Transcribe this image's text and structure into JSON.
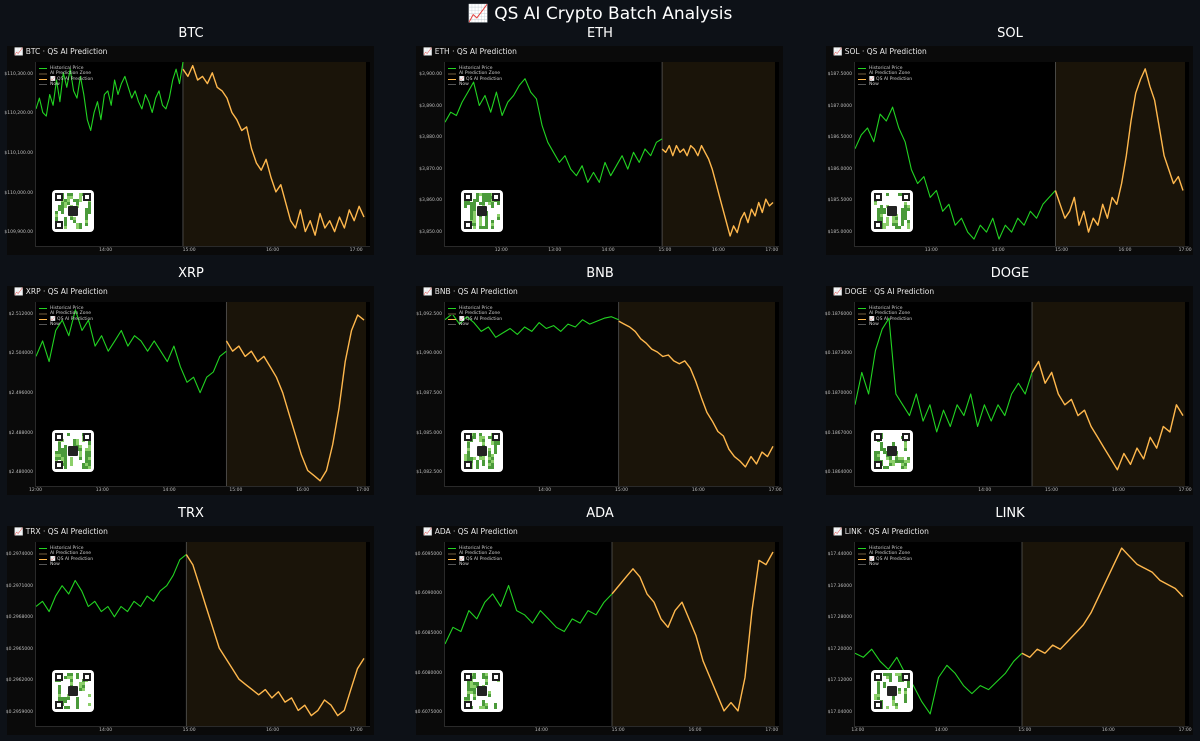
{
  "page": {
    "title": "📈 QS AI Crypto Batch Analysis"
  },
  "legend": {
    "historical": "Historical Price",
    "zone": "AI Prediction Zone",
    "prediction": "📈 QS AI Prediction",
    "now": "Now"
  },
  "colors": {
    "historical": "#22d322",
    "prediction": "#ffb84d",
    "zone": "#1a1409",
    "now": "#555555",
    "background": "#0d1117"
  },
  "chart_data": [
    {
      "type": "line",
      "title": "BTC",
      "subtitle": "📈 BTC · QS AI Prediction",
      "x_ticks": [
        "14:00",
        "15:00",
        "16:00",
        "17:00"
      ],
      "x_tick_pos": [
        0.21,
        0.46,
        0.71,
        0.96
      ],
      "y_ticks": [
        "$109,900.00",
        "$110,000.00",
        "$110,100.00",
        "$110,200.00",
        "$110,300.00"
      ],
      "ylim": [
        109830,
        110340
      ],
      "now_frac": 0.44,
      "series": [
        {
          "name": "Historical Price",
          "values": [
            110210,
            110240,
            110200,
            110190,
            110250,
            110220,
            110290,
            110230,
            110310,
            110270,
            110320,
            110260,
            110240,
            110300,
            110250,
            110180,
            110150,
            110200,
            110230,
            110180,
            110250,
            110260,
            110220,
            110290,
            110250,
            110280,
            110300,
            110270,
            110240,
            110260,
            110230,
            110210,
            110250,
            110230,
            110200,
            110240,
            110260,
            110220,
            110210,
            110240,
            110290,
            110320,
            110280,
            110340
          ]
        },
        {
          "name": "QS AI Prediction",
          "values": [
            110320,
            110300,
            110330,
            110290,
            110300,
            110280,
            110310,
            110270,
            110260,
            110240,
            110200,
            110180,
            110150,
            110160,
            110100,
            110060,
            110040,
            110070,
            110020,
            109980,
            110000,
            109950,
            109900,
            109880,
            109930,
            109870,
            109900,
            109860,
            109920,
            109880,
            109900,
            109870,
            109910,
            109880,
            109930,
            109900,
            109940,
            109910
          ]
        }
      ]
    },
    {
      "type": "line",
      "title": "ETH",
      "subtitle": "📈 ETH · QS AI Prediction",
      "x_ticks": [
        "12:00",
        "13:00",
        "14:00",
        "15:00",
        "16:00",
        "17:00"
      ],
      "x_tick_pos": [
        0.17,
        0.33,
        0.49,
        0.66,
        0.82,
        0.98
      ],
      "y_ticks": [
        "$3,850.00",
        "$3,860.00",
        "$3,870.00",
        "$3,880.00",
        "$3,890.00",
        "$3,900.00"
      ],
      "ylim": [
        3847,
        3902
      ],
      "now_frac": 0.65,
      "series": [
        {
          "name": "Historical Price",
          "values": [
            3884,
            3887,
            3886,
            3890,
            3893,
            3896,
            3889,
            3892,
            3887,
            3893,
            3886,
            3890,
            3892,
            3895,
            3897,
            3893,
            3891,
            3883,
            3878,
            3875,
            3872,
            3874,
            3870,
            3868,
            3871,
            3866,
            3869,
            3866,
            3872,
            3868,
            3871,
            3874,
            3870,
            3875,
            3872,
            3876,
            3874,
            3878,
            3879
          ]
        },
        {
          "name": "QS AI Prediction",
          "values": [
            3876,
            3875,
            3877,
            3874,
            3877,
            3875,
            3876,
            3874,
            3877,
            3876,
            3874,
            3877,
            3875,
            3873,
            3870,
            3866,
            3862,
            3858,
            3854,
            3850,
            3853,
            3851,
            3855,
            3857,
            3854,
            3858,
            3856,
            3860,
            3857,
            3861,
            3859,
            3860
          ]
        }
      ]
    },
    {
      "type": "line",
      "title": "SOL",
      "subtitle": "📈 SOL · QS AI Prediction",
      "x_ticks": [
        "13:00",
        "14:00",
        "15:00",
        "16:00",
        "17:00"
      ],
      "x_tick_pos": [
        0.23,
        0.43,
        0.62,
        0.81,
        0.99
      ],
      "y_ticks": [
        "$185.0000",
        "$185.5000",
        "$186.0000",
        "$186.5000",
        "$187.0000",
        "$187.5000"
      ],
      "ylim": [
        184.9,
        187.55
      ],
      "now_frac": 0.6,
      "series": [
        {
          "name": "Historical Price",
          "values": [
            186.3,
            186.5,
            186.6,
            186.4,
            186.8,
            186.7,
            186.9,
            186.6,
            186.4,
            186.0,
            185.8,
            185.9,
            185.6,
            185.7,
            185.4,
            185.5,
            185.2,
            185.3,
            185.1,
            185.0,
            185.2,
            185.1,
            185.3,
            185.0,
            185.2,
            185.1,
            185.3,
            185.2,
            185.4,
            185.3,
            185.5,
            185.6,
            185.7
          ]
        },
        {
          "name": "QS AI Prediction",
          "values": [
            185.7,
            185.5,
            185.3,
            185.4,
            185.6,
            185.2,
            185.4,
            185.1,
            185.3,
            185.2,
            185.5,
            185.3,
            185.6,
            185.5,
            185.8,
            186.2,
            186.7,
            187.1,
            187.3,
            187.45,
            187.2,
            187.0,
            186.6,
            186.2,
            186.0,
            185.8,
            185.9,
            185.7
          ]
        }
      ]
    },
    {
      "type": "line",
      "title": "XRP",
      "subtitle": "📈 XRP · QS AI Prediction",
      "x_ticks": [
        "12:00",
        "13:00",
        "14:00",
        "15:00",
        "16:00",
        "17:00"
      ],
      "x_tick_pos": [
        0.0,
        0.2,
        0.4,
        0.6,
        0.8,
        0.98
      ],
      "y_ticks": [
        "$2.480000",
        "$2.488000",
        "$2.496000",
        "$2.504000",
        "$2.512000"
      ],
      "ylim": [
        2.479,
        2.5145
      ],
      "now_frac": 0.57,
      "series": [
        {
          "name": "Historical Price",
          "values": [
            2.504,
            2.507,
            2.503,
            2.509,
            2.511,
            2.508,
            2.513,
            2.509,
            2.511,
            2.506,
            2.508,
            2.505,
            2.507,
            2.509,
            2.506,
            2.508,
            2.507,
            2.505,
            2.507,
            2.505,
            2.503,
            2.506,
            2.502,
            2.499,
            2.5,
            2.497,
            2.5,
            2.501,
            2.504,
            2.505
          ]
        },
        {
          "name": "QS AI Prediction",
          "values": [
            2.507,
            2.505,
            2.506,
            2.504,
            2.505,
            2.503,
            2.504,
            2.502,
            2.5,
            2.497,
            2.493,
            2.489,
            2.485,
            2.482,
            2.481,
            2.48,
            2.482,
            2.487,
            2.494,
            2.503,
            2.509,
            2.512,
            2.511
          ]
        }
      ]
    },
    {
      "type": "line",
      "title": "BNB",
      "subtitle": "📈 BNB · QS AI Prediction",
      "x_ticks": [
        "14:00",
        "15:00",
        "16:00",
        "17:00"
      ],
      "x_tick_pos": [
        0.3,
        0.53,
        0.76,
        0.99
      ],
      "y_ticks": [
        "$1,082.500",
        "$1,085.000",
        "$1,087.500",
        "$1,090.000",
        "$1,092.500"
      ],
      "ylim": [
        1081.5,
        1094.0
      ],
      "now_frac": 0.52,
      "series": [
        {
          "name": "Historical Price",
          "values": [
            1092.8,
            1093.2,
            1092.5,
            1093.0,
            1092.6,
            1092.0,
            1092.3,
            1091.6,
            1091.9,
            1092.2,
            1091.8,
            1092.3,
            1092.0,
            1092.6,
            1092.2,
            1092.4,
            1092.0,
            1092.5,
            1092.3,
            1092.8,
            1092.5,
            1092.7,
            1092.9,
            1093.0,
            1092.8
          ]
        },
        {
          "name": "QS AI Prediction",
          "values": [
            1092.7,
            1092.5,
            1092.3,
            1092.0,
            1091.5,
            1091.2,
            1090.8,
            1090.6,
            1090.3,
            1090.4,
            1090.0,
            1089.8,
            1090.0,
            1089.5,
            1088.6,
            1087.5,
            1086.5,
            1085.9,
            1085.2,
            1084.9,
            1084.0,
            1083.5,
            1083.2,
            1082.8,
            1083.5,
            1083.0,
            1083.8,
            1083.5,
            1084.2
          ]
        }
      ]
    },
    {
      "type": "line",
      "title": "DOGE",
      "subtitle": "📈 DOGE · QS AI Prediction",
      "x_ticks": [
        "14:00",
        "15:00",
        "16:00",
        "17:00"
      ],
      "x_tick_pos": [
        0.39,
        0.59,
        0.79,
        0.99
      ],
      "y_ticks": [
        "$0.1864000",
        "$0.1867000",
        "$0.1870000",
        "$0.1873000",
        "$0.1876000"
      ],
      "ylim": [
        0.18615,
        0.18785
      ],
      "now_frac": 0.53,
      "series": [
        {
          "name": "Historical Price",
          "values": [
            0.1869,
            0.1872,
            0.187,
            0.1874,
            0.1876,
            0.1877,
            0.187,
            0.1869,
            0.1868,
            0.187,
            0.18675,
            0.1869,
            0.18665,
            0.18685,
            0.1867,
            0.1869,
            0.1868,
            0.187,
            0.1867,
            0.1869,
            0.18675,
            0.1869,
            0.1868,
            0.187,
            0.1871,
            0.187,
            0.1872
          ]
        },
        {
          "name": "QS AI Prediction",
          "values": [
            0.1872,
            0.1873,
            0.1871,
            0.1872,
            0.187,
            0.1869,
            0.18695,
            0.1868,
            0.18685,
            0.1867,
            0.1866,
            0.1865,
            0.1864,
            0.1863,
            0.18645,
            0.18635,
            0.1865,
            0.1864,
            0.1866,
            0.1865,
            0.1867,
            0.18665,
            0.1869,
            0.1868
          ]
        }
      ]
    },
    {
      "type": "line",
      "title": "TRX",
      "subtitle": "📈 TRX · QS AI Prediction",
      "x_ticks": [
        "14:00",
        "15:00",
        "16:00",
        "17:00"
      ],
      "x_tick_pos": [
        0.21,
        0.46,
        0.71,
        0.96
      ],
      "y_ticks": [
        "$0.2959000",
        "$0.2962000",
        "$0.2965000",
        "$0.2968000",
        "$0.2971000",
        "$0.2974000"
      ],
      "ylim": [
        0.29585,
        0.29762
      ],
      "now_frac": 0.45,
      "series": [
        {
          "name": "Historical Price",
          "values": [
            0.297,
            0.29705,
            0.29695,
            0.2971,
            0.2972,
            0.29712,
            0.29725,
            0.29715,
            0.297,
            0.29705,
            0.29695,
            0.297,
            0.2969,
            0.297,
            0.29695,
            0.29705,
            0.297,
            0.2971,
            0.29705,
            0.29715,
            0.2972,
            0.2973,
            0.29745,
            0.2975
          ]
        },
        {
          "name": "QS AI Prediction",
          "values": [
            0.2975,
            0.2974,
            0.2972,
            0.297,
            0.2968,
            0.2966,
            0.2965,
            0.2964,
            0.2963,
            0.29625,
            0.2962,
            0.29615,
            0.2962,
            0.29612,
            0.29618,
            0.29608,
            0.29612,
            0.296,
            0.29605,
            0.29595,
            0.296,
            0.2961,
            0.29605,
            0.29595,
            0.296,
            0.2962,
            0.2964,
            0.2965
          ]
        }
      ]
    },
    {
      "type": "line",
      "title": "ADA",
      "subtitle": "📈 ADA · QS AI Prediction",
      "x_ticks": [
        "14:00",
        "15:00",
        "16:00",
        "17:00"
      ],
      "x_tick_pos": [
        0.29,
        0.52,
        0.75,
        0.98
      ],
      "y_ticks": [
        "$0.6075000",
        "$0.6080000",
        "$0.6085000",
        "$0.6090000",
        "$0.6095000"
      ],
      "ylim": [
        0.60742,
        0.60962
      ],
      "now_frac": 0.5,
      "series": [
        {
          "name": "Historical Price",
          "values": [
            0.6084,
            0.6086,
            0.60855,
            0.6088,
            0.6087,
            0.6089,
            0.609,
            0.60885,
            0.6091,
            0.6088,
            0.60875,
            0.60865,
            0.6088,
            0.6087,
            0.6086,
            0.60855,
            0.6087,
            0.60865,
            0.6088,
            0.60875,
            0.6089,
            0.609
          ]
        },
        {
          "name": "QS AI Prediction",
          "values": [
            0.609,
            0.6091,
            0.6092,
            0.6093,
            0.6092,
            0.609,
            0.6089,
            0.6087,
            0.6086,
            0.6088,
            0.6089,
            0.6087,
            0.6085,
            0.6082,
            0.608,
            0.6078,
            0.6076,
            0.6077,
            0.6076,
            0.608,
            0.6088,
            0.6094,
            0.60935,
            0.6095
          ]
        }
      ]
    },
    {
      "type": "line",
      "title": "LINK",
      "subtitle": "📈 LINK · QS AI Prediction",
      "x_ticks": [
        "13:00",
        "14:00",
        "15:00",
        "16:00",
        "17:00"
      ],
      "x_tick_pos": [
        0.01,
        0.26,
        0.51,
        0.76,
        0.99
      ],
      "y_ticks": [
        "$17.04000",
        "$17.12000",
        "$17.20000",
        "$17.28000",
        "$17.36000",
        "$17.44000"
      ],
      "ylim": [
        17.02,
        17.475
      ],
      "now_frac": 0.5,
      "series": [
        {
          "name": "Historical Price",
          "values": [
            17.2,
            17.19,
            17.21,
            17.18,
            17.16,
            17.19,
            17.15,
            17.12,
            17.08,
            17.05,
            17.14,
            17.17,
            17.15,
            17.12,
            17.1,
            17.12,
            17.11,
            17.13,
            17.15,
            17.18,
            17.2
          ]
        },
        {
          "name": "QS AI Prediction",
          "values": [
            17.2,
            17.19,
            17.21,
            17.2,
            17.22,
            17.21,
            17.23,
            17.25,
            17.27,
            17.3,
            17.34,
            17.38,
            17.42,
            17.46,
            17.44,
            17.42,
            17.41,
            17.4,
            17.38,
            17.37,
            17.36,
            17.34
          ]
        }
      ]
    }
  ]
}
